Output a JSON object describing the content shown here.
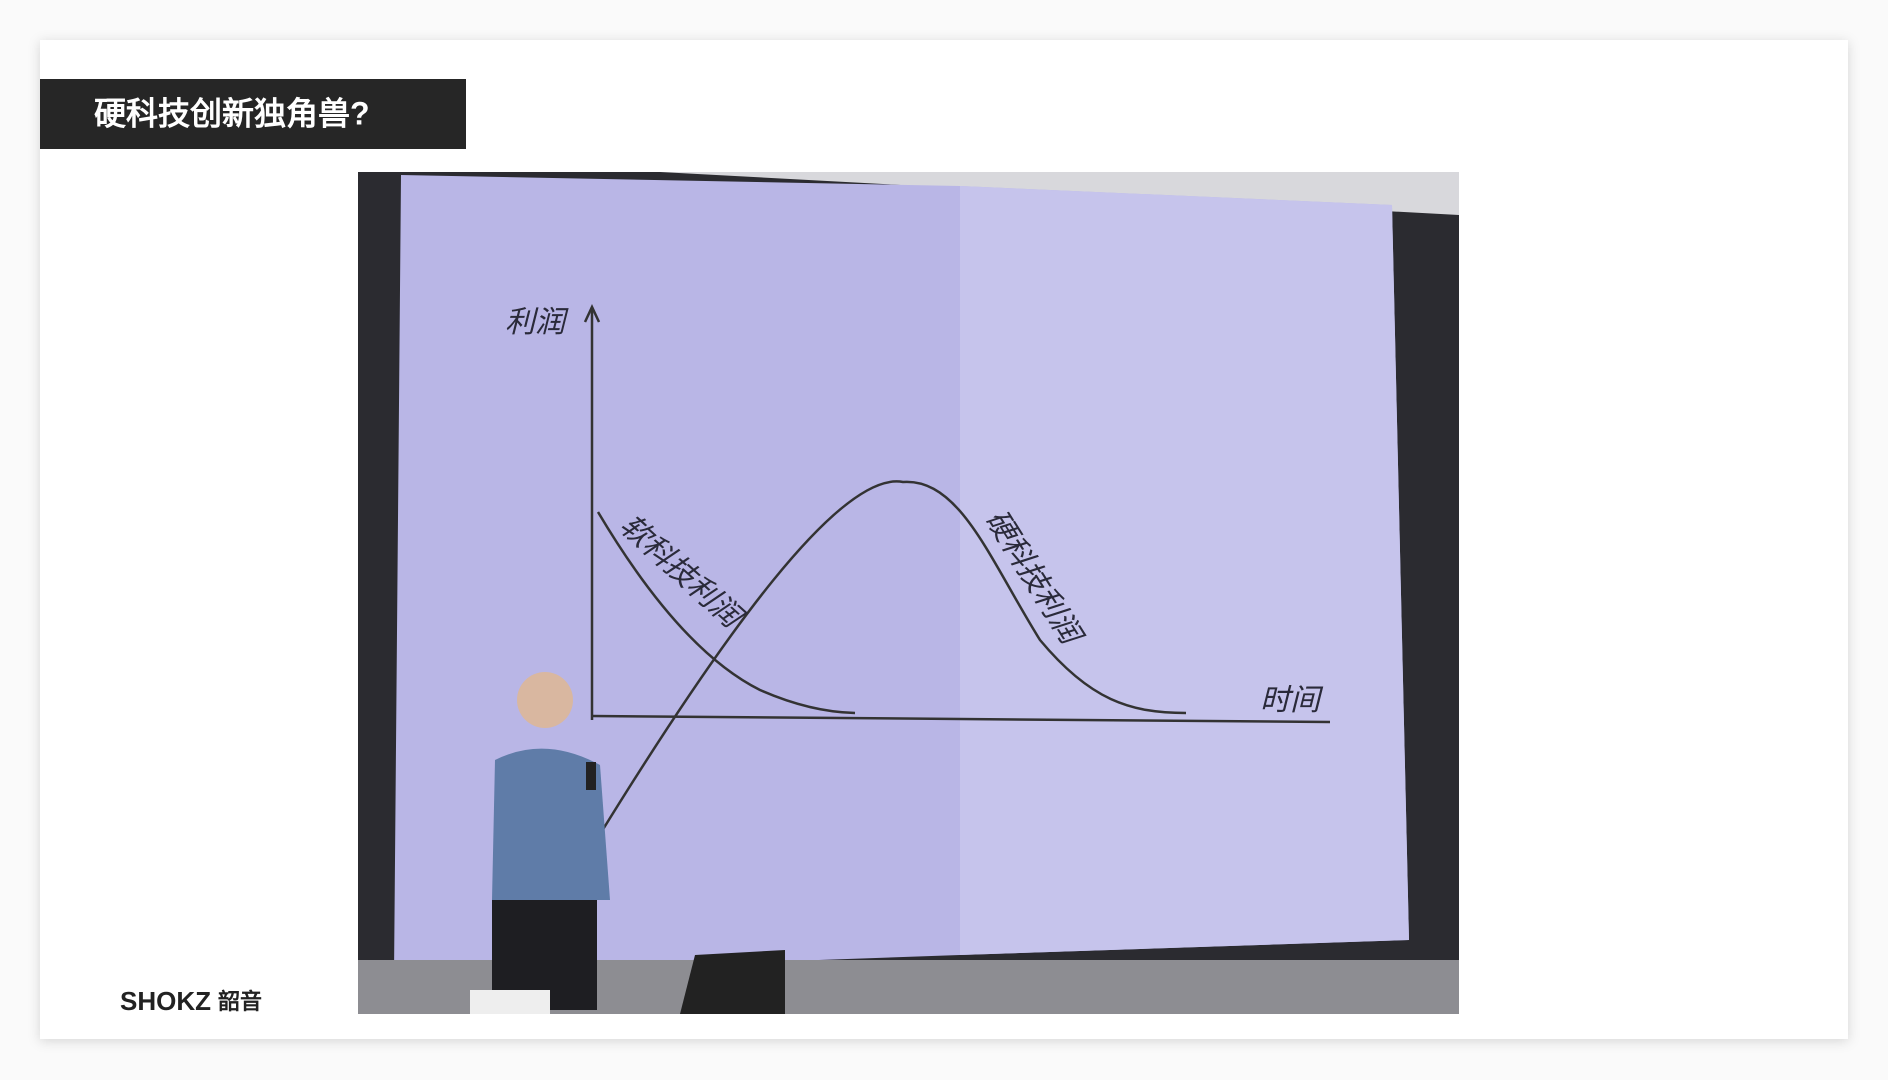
{
  "header": {
    "title": "硬科技创新独角兽?"
  },
  "figure": {
    "y_axis": "利润",
    "x_axis": "时间",
    "curve_soft": "软科技利润",
    "curve_hard": "硬科技利润"
  },
  "logo": {
    "brand": "SHOKZ",
    "cn": "韶音"
  }
}
